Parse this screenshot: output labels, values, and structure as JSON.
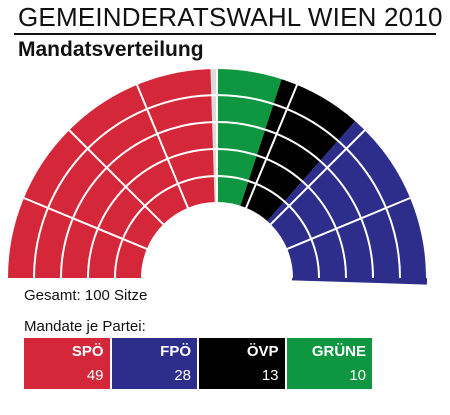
{
  "header": {
    "title": "GEMEINDERATSWAHL WIEN 2010",
    "subtitle": "Mandatsverteilung"
  },
  "total_label": "Gesamt: 100 Sitze",
  "legend_heading": "Mandate je Partei:",
  "empty_seat_color": "#dcdcdc",
  "parties": [
    {
      "name": "SPÖ",
      "seats": "49",
      "color": "#d4283a"
    },
    {
      "name": "FPÖ",
      "seats": "28",
      "color": "#2d2d8c"
    },
    {
      "name": "ÖVP",
      "seats": "13",
      "color": "#000000"
    },
    {
      "name": "GRÜNE",
      "seats": "10",
      "color": "#0f9640"
    }
  ],
  "chart_data": {
    "type": "pie",
    "title": "Mandatsverteilung",
    "total_seats": 100,
    "categories": [
      "SPÖ",
      "FPÖ",
      "ÖVP",
      "GRÜNE"
    ],
    "values": [
      49,
      28,
      13,
      10
    ],
    "colors": [
      "#d4283a",
      "#2d2d8c",
      "#000000",
      "#0f9640"
    ]
  }
}
